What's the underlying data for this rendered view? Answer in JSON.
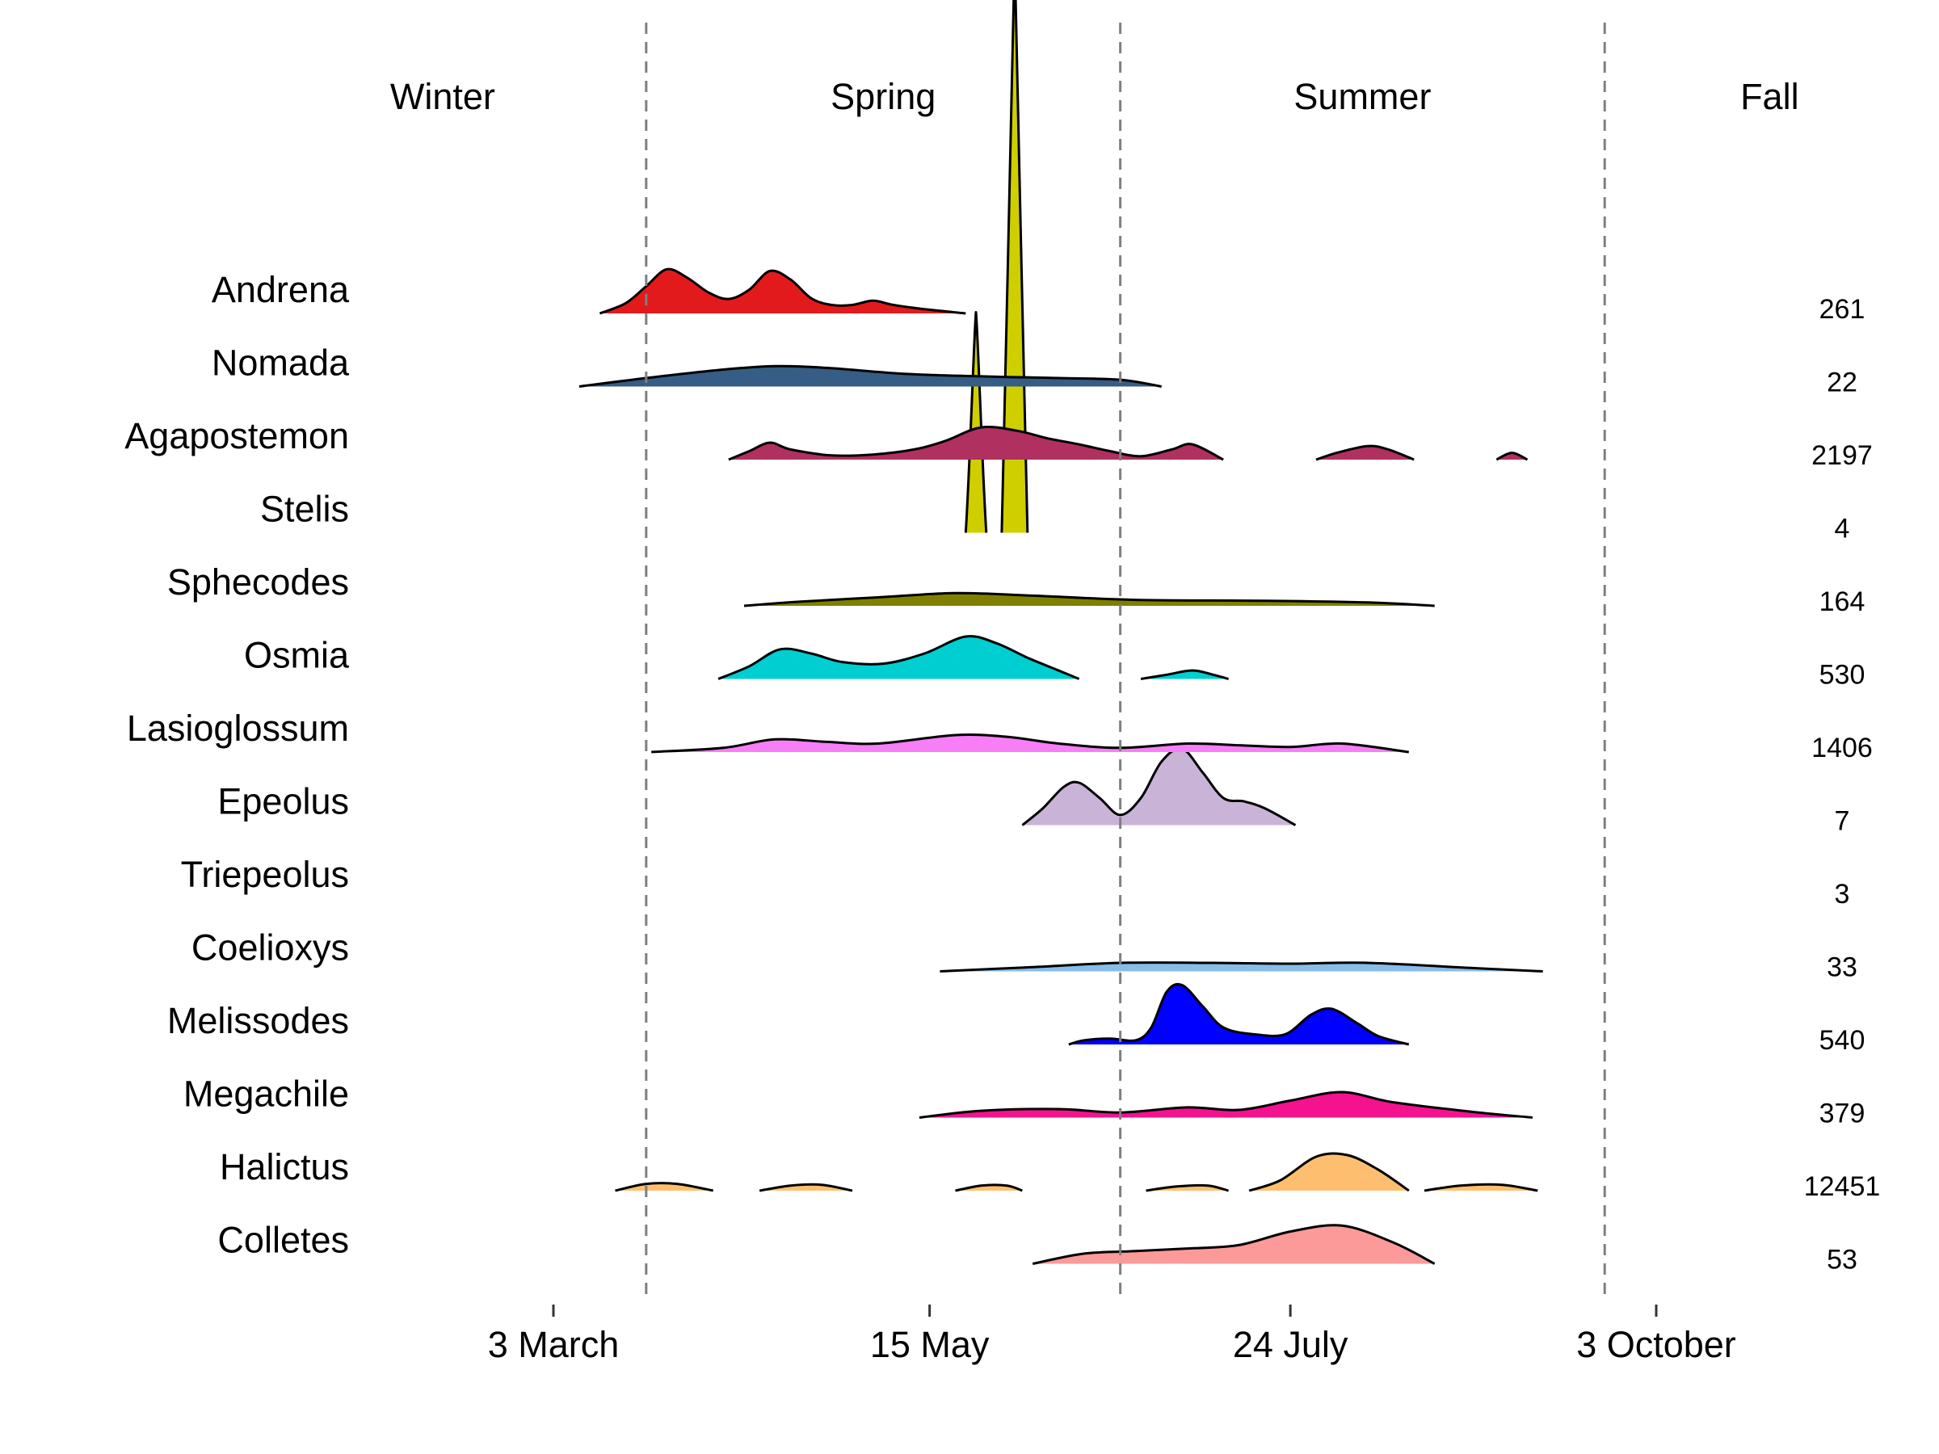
{
  "chart_data": {
    "type": "area",
    "subtype": "ridgeline",
    "title": "",
    "xlabel": "",
    "ylabel": "",
    "x_axis": {
      "unit": "day of year",
      "range": [
        1,
        330
      ],
      "ticks": [
        {
          "value": 62,
          "label": "3 March"
        },
        {
          "value": 135,
          "label": "15 May"
        },
        {
          "value": 205,
          "label": "24 July"
        },
        {
          "value": 276,
          "label": "3 October"
        }
      ]
    },
    "seasons": [
      {
        "label": "Winter",
        "start": 1,
        "end": 80
      },
      {
        "label": "Spring",
        "start": 80,
        "end": 172
      },
      {
        "label": "Summer",
        "start": 172,
        "end": 266
      },
      {
        "label": "Fall",
        "start": 266,
        "end": 330
      }
    ],
    "season_boundaries": [
      80,
      172,
      266
    ],
    "count_column_title": "",
    "grid": false,
    "legend": "none",
    "series": [
      {
        "name": "Andrena",
        "count": "261",
        "color": "#e31a1c",
        "points": [
          [
            71,
            0
          ],
          [
            76,
            0.12
          ],
          [
            80,
            0.32
          ],
          [
            84,
            0.52
          ],
          [
            88,
            0.42
          ],
          [
            92,
            0.25
          ],
          [
            96,
            0.17
          ],
          [
            100,
            0.28
          ],
          [
            104,
            0.5
          ],
          [
            108,
            0.4
          ],
          [
            112,
            0.18
          ],
          [
            116,
            0.1
          ],
          [
            120,
            0.1
          ],
          [
            124,
            0.15
          ],
          [
            128,
            0.1
          ],
          [
            134,
            0.05
          ],
          [
            142,
            0
          ]
        ]
      },
      {
        "name": "Nomada",
        "count": "22",
        "color": "#355d85",
        "points": [
          [
            67,
            0
          ],
          [
            80,
            0.1
          ],
          [
            95,
            0.2
          ],
          [
            105,
            0.24
          ],
          [
            115,
            0.22
          ],
          [
            130,
            0.15
          ],
          [
            145,
            0.12
          ],
          [
            160,
            0.1
          ],
          [
            172,
            0.08
          ],
          [
            180,
            0
          ]
        ]
      },
      {
        "name": "Agapostemon",
        "count": "2197",
        "color": "#b03060",
        "points": [
          [
            96,
            0
          ],
          [
            100,
            0.1
          ],
          [
            104,
            0.2
          ],
          [
            108,
            0.12
          ],
          [
            116,
            0.05
          ],
          [
            124,
            0.06
          ],
          [
            132,
            0.12
          ],
          [
            138,
            0.22
          ],
          [
            145,
            0.38
          ],
          [
            152,
            0.34
          ],
          [
            158,
            0.25
          ],
          [
            164,
            0.18
          ],
          [
            170,
            0.1
          ],
          [
            176,
            0.04
          ],
          [
            182,
            0.12
          ],
          [
            186,
            0.18
          ],
          [
            192,
            0
          ]
        ],
        "extra_segments": [
          [
            [
              210,
              0
            ],
            [
              214,
              0.08
            ],
            [
              220,
              0.16
            ],
            [
              224,
              0.12
            ],
            [
              229,
              0
            ]
          ],
          [
            [
              245,
              0
            ],
            [
              248,
              0.08
            ],
            [
              251,
              0
            ]
          ]
        ]
      },
      {
        "name": "Stelis",
        "count": "4",
        "color": "#cfcf00",
        "spikes": [
          {
            "start": 142,
            "peak": 144,
            "end": 146,
            "height": 2.6
          },
          {
            "start": 149,
            "peak": 151.5,
            "end": 154,
            "height": 6.8
          }
        ]
      },
      {
        "name": "Sphecodes",
        "count": "164",
        "color": "#808000",
        "points": [
          [
            99,
            0
          ],
          [
            110,
            0.05
          ],
          [
            125,
            0.1
          ],
          [
            140,
            0.15
          ],
          [
            155,
            0.12
          ],
          [
            175,
            0.07
          ],
          [
            200,
            0.06
          ],
          [
            220,
            0.04
          ],
          [
            233,
            0
          ]
        ]
      },
      {
        "name": "Osmia",
        "count": "530",
        "color": "#00ced1",
        "points": [
          [
            94,
            0
          ],
          [
            100,
            0.15
          ],
          [
            106,
            0.35
          ],
          [
            112,
            0.3
          ],
          [
            118,
            0.2
          ],
          [
            126,
            0.18
          ],
          [
            134,
            0.3
          ],
          [
            142,
            0.5
          ],
          [
            148,
            0.42
          ],
          [
            154,
            0.25
          ],
          [
            160,
            0.1
          ],
          [
            164,
            0
          ]
        ],
        "extra_segments": [
          [
            [
              176,
              0
            ],
            [
              181,
              0.05
            ],
            [
              186,
              0.1
            ],
            [
              190,
              0.05
            ],
            [
              193,
              0
            ]
          ]
        ]
      },
      {
        "name": "Lasioglossum",
        "count": "1406",
        "color": "#f77ef7",
        "points": [
          [
            81,
            0
          ],
          [
            95,
            0.05
          ],
          [
            105,
            0.15
          ],
          [
            115,
            0.12
          ],
          [
            125,
            0.1
          ],
          [
            140,
            0.2
          ],
          [
            150,
            0.18
          ],
          [
            160,
            0.1
          ],
          [
            172,
            0.05
          ],
          [
            185,
            0.1
          ],
          [
            195,
            0.08
          ],
          [
            205,
            0.06
          ],
          [
            215,
            0.1
          ],
          [
            228,
            0
          ]
        ]
      },
      {
        "name": "Epeolus",
        "count": "7",
        "color": "#c9b3d6",
        "points": [
          [
            153,
            0
          ],
          [
            157,
            0.2
          ],
          [
            161,
            0.45
          ],
          [
            164,
            0.5
          ],
          [
            168,
            0.32
          ],
          [
            172,
            0.12
          ],
          [
            176,
            0.32
          ],
          [
            180,
            0.75
          ],
          [
            184,
            0.9
          ],
          [
            188,
            0.62
          ],
          [
            192,
            0.32
          ],
          [
            196,
            0.28
          ],
          [
            200,
            0.2
          ],
          [
            206,
            0
          ]
        ]
      },
      {
        "name": "Triepeolus",
        "count": "3",
        "color": "#c9b3d6",
        "points": []
      },
      {
        "name": "Coelioxys",
        "count": "33",
        "color": "#87bde8",
        "points": [
          [
            137,
            0
          ],
          [
            155,
            0.05
          ],
          [
            172,
            0.1
          ],
          [
            190,
            0.1
          ],
          [
            205,
            0.09
          ],
          [
            220,
            0.1
          ],
          [
            240,
            0.04
          ],
          [
            254,
            0
          ]
        ]
      },
      {
        "name": "Melissodes",
        "count": "540",
        "color": "#0000ff",
        "points": [
          [
            162,
            0
          ],
          [
            165,
            0.05
          ],
          [
            170,
            0.07
          ],
          [
            175,
            0.05
          ],
          [
            178,
            0.2
          ],
          [
            181,
            0.62
          ],
          [
            184,
            0.7
          ],
          [
            188,
            0.45
          ],
          [
            192,
            0.2
          ],
          [
            198,
            0.12
          ],
          [
            204,
            0.12
          ],
          [
            209,
            0.35
          ],
          [
            213,
            0.42
          ],
          [
            218,
            0.25
          ],
          [
            222,
            0.1
          ],
          [
            228,
            0
          ]
        ]
      },
      {
        "name": "Megachile",
        "count": "379",
        "color": "#f4128e",
        "points": [
          [
            133,
            0
          ],
          [
            145,
            0.08
          ],
          [
            160,
            0.1
          ],
          [
            172,
            0.06
          ],
          [
            185,
            0.12
          ],
          [
            195,
            0.09
          ],
          [
            205,
            0.2
          ],
          [
            215,
            0.3
          ],
          [
            225,
            0.18
          ],
          [
            240,
            0.07
          ],
          [
            252,
            0
          ]
        ]
      },
      {
        "name": "Halictus",
        "count": "12451",
        "color": "#fdbf6f",
        "points": [
          [
            197,
            0
          ],
          [
            203,
            0.12
          ],
          [
            210,
            0.4
          ],
          [
            216,
            0.42
          ],
          [
            222,
            0.25
          ],
          [
            228,
            0
          ]
        ],
        "extra_segments": [
          [
            [
              74,
              0
            ],
            [
              80,
              0.08
            ],
            [
              86,
              0.08
            ],
            [
              93,
              0
            ]
          ],
          [
            [
              102,
              0
            ],
            [
              108,
              0.06
            ],
            [
              114,
              0.07
            ],
            [
              120,
              0
            ]
          ],
          [
            [
              140,
              0
            ],
            [
              145,
              0.06
            ],
            [
              150,
              0.06
            ],
            [
              153,
              0
            ]
          ],
          [
            [
              177,
              0
            ],
            [
              183,
              0.05
            ],
            [
              189,
              0.06
            ],
            [
              193,
              0
            ]
          ],
          [
            [
              231,
              0
            ],
            [
              238,
              0.06
            ],
            [
              246,
              0.07
            ],
            [
              253,
              0
            ]
          ]
        ]
      },
      {
        "name": "Colletes",
        "count": "53",
        "color": "#fb9a99",
        "points": [
          [
            155,
            0
          ],
          [
            165,
            0.12
          ],
          [
            175,
            0.15
          ],
          [
            185,
            0.18
          ],
          [
            195,
            0.22
          ],
          [
            205,
            0.38
          ],
          [
            215,
            0.45
          ],
          [
            225,
            0.25
          ],
          [
            233,
            0
          ]
        ]
      }
    ]
  }
}
